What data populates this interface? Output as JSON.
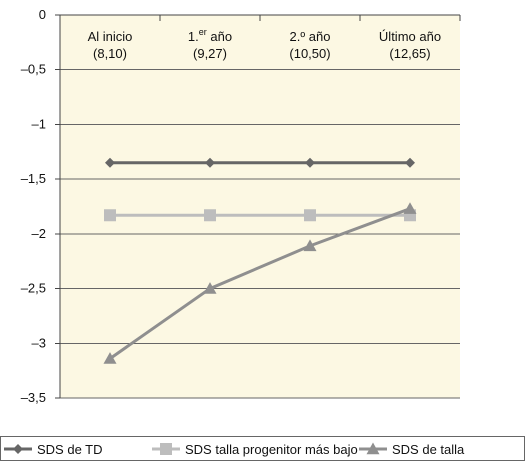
{
  "chart_data": {
    "type": "line",
    "categories": [
      {
        "line1": "Al inicio",
        "line2": "(8,10)"
      },
      {
        "line1": "1.",
        "sup": "er",
        "line1b": " año",
        "line2": "(9,27)"
      },
      {
        "line1": "2.º año",
        "line2": "(10,50)"
      },
      {
        "line1": "Último año",
        "line2": "(12,65)"
      }
    ],
    "y_ticks": [
      "0",
      "–0,5",
      "–1",
      "–1,5",
      "–2",
      "–2,5",
      "–3",
      "–3,5"
    ],
    "y_tick_values": [
      0,
      -0.5,
      -1,
      -1.5,
      -2,
      -2.5,
      -3,
      -3.5
    ],
    "ylim": [
      -3.5,
      0
    ],
    "grid": true,
    "legend_position": "bottom",
    "series": [
      {
        "name": "SDS de TD",
        "values": [
          -1.35,
          -1.35,
          -1.35,
          -1.35
        ],
        "color": "#666666",
        "marker": "diamond"
      },
      {
        "name": "SDS talla progenitor más bajo",
        "values": [
          -1.83,
          -1.83,
          -1.83,
          -1.83
        ],
        "color": "#bdbdbd",
        "marker": "square"
      },
      {
        "name": "SDS de talla",
        "values": [
          -3.14,
          -2.5,
          -2.11,
          -1.77
        ],
        "color": "#8f8f8f",
        "marker": "triangle"
      }
    ],
    "colors": {
      "plot_bg": "#fcf8e3",
      "grid": "#666666",
      "axis": "#444444"
    }
  }
}
